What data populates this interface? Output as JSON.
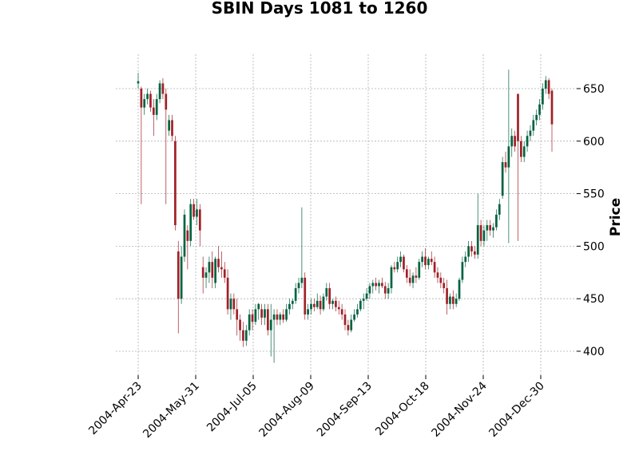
{
  "chart_data": {
    "type": "candlestick",
    "title": "SBIN Days 1081 to 1260",
    "ylabel": "Price",
    "xlabel": "",
    "ylim": [
      378,
      680
    ],
    "y_ticks": [
      400,
      450,
      500,
      550,
      600,
      650
    ],
    "x_tick_labels": [
      "2004-Apr-23",
      "2004-May-31",
      "2004-Jul-05",
      "2004-Aug-09",
      "2004-Sep-13",
      "2004-Oct-18",
      "2004-Nov-24",
      "2004-Dec-30"
    ],
    "x_tick_index": [
      0,
      25,
      50,
      75,
      100,
      125,
      150,
      175
    ],
    "up_color": "#006340",
    "down_color": "#a02128",
    "grid": true,
    "candles": [
      {
        "o": 655,
        "h": 665,
        "l": 650,
        "c": 657
      },
      {
        "o": 650,
        "h": 652,
        "l": 540,
        "c": 632
      },
      {
        "o": 632,
        "h": 645,
        "l": 625,
        "c": 640
      },
      {
        "o": 640,
        "h": 650,
        "l": 635,
        "c": 645
      },
      {
        "o": 645,
        "h": 648,
        "l": 628,
        "c": 632
      },
      {
        "o": 632,
        "h": 640,
        "l": 605,
        "c": 625
      },
      {
        "o": 625,
        "h": 645,
        "l": 620,
        "c": 640
      },
      {
        "o": 640,
        "h": 658,
        "l": 636,
        "c": 655
      },
      {
        "o": 655,
        "h": 660,
        "l": 640,
        "c": 645
      },
      {
        "o": 645,
        "h": 650,
        "l": 540,
        "c": 630
      },
      {
        "o": 610,
        "h": 625,
        "l": 605,
        "c": 620
      },
      {
        "o": 620,
        "h": 625,
        "l": 600,
        "c": 605
      },
      {
        "o": 600,
        "h": 605,
        "l": 515,
        "c": 520
      },
      {
        "o": 495,
        "h": 505,
        "l": 417,
        "c": 450
      },
      {
        "o": 450,
        "h": 500,
        "l": 445,
        "c": 490
      },
      {
        "o": 490,
        "h": 535,
        "l": 485,
        "c": 530
      },
      {
        "o": 515,
        "h": 520,
        "l": 478,
        "c": 505
      },
      {
        "o": 505,
        "h": 545,
        "l": 500,
        "c": 540
      },
      {
        "o": 540,
        "h": 545,
        "l": 525,
        "c": 528
      },
      {
        "o": 528,
        "h": 545,
        "l": 520,
        "c": 535
      },
      {
        "o": 535,
        "h": 540,
        "l": 500,
        "c": 515
      },
      {
        "o": 480,
        "h": 490,
        "l": 455,
        "c": 470
      },
      {
        "o": 470,
        "h": 480,
        "l": 460,
        "c": 475
      },
      {
        "o": 475,
        "h": 490,
        "l": 465,
        "c": 485
      },
      {
        "o": 485,
        "h": 495,
        "l": 460,
        "c": 470
      },
      {
        "o": 465,
        "h": 490,
        "l": 460,
        "c": 488
      },
      {
        "o": 488,
        "h": 500,
        "l": 475,
        "c": 480
      },
      {
        "o": 480,
        "h": 495,
        "l": 470,
        "c": 478
      },
      {
        "o": 478,
        "h": 485,
        "l": 465,
        "c": 470
      },
      {
        "o": 470,
        "h": 478,
        "l": 435,
        "c": 440
      },
      {
        "o": 440,
        "h": 455,
        "l": 430,
        "c": 450
      },
      {
        "o": 450,
        "h": 455,
        "l": 435,
        "c": 440
      },
      {
        "o": 440,
        "h": 450,
        "l": 415,
        "c": 430
      },
      {
        "o": 430,
        "h": 435,
        "l": 410,
        "c": 420
      },
      {
        "o": 420,
        "h": 428,
        "l": 404,
        "c": 410
      },
      {
        "o": 410,
        "h": 425,
        "l": 405,
        "c": 420
      },
      {
        "o": 420,
        "h": 440,
        "l": 415,
        "c": 435
      },
      {
        "o": 435,
        "h": 440,
        "l": 420,
        "c": 428
      },
      {
        "o": 428,
        "h": 445,
        "l": 425,
        "c": 440
      },
      {
        "o": 440,
        "h": 446,
        "l": 430,
        "c": 445
      },
      {
        "o": 440,
        "h": 445,
        "l": 425,
        "c": 432
      },
      {
        "o": 432,
        "h": 445,
        "l": 425,
        "c": 440
      },
      {
        "o": 440,
        "h": 445,
        "l": 415,
        "c": 420
      },
      {
        "o": 420,
        "h": 445,
        "l": 395,
        "c": 430
      },
      {
        "o": 430,
        "h": 440,
        "l": 389,
        "c": 435
      },
      {
        "o": 435,
        "h": 440,
        "l": 425,
        "c": 430
      },
      {
        "o": 430,
        "h": 437,
        "l": 425,
        "c": 435
      },
      {
        "o": 435,
        "h": 440,
        "l": 427,
        "c": 430
      },
      {
        "o": 430,
        "h": 445,
        "l": 428,
        "c": 440
      },
      {
        "o": 440,
        "h": 450,
        "l": 435,
        "c": 445
      },
      {
        "o": 445,
        "h": 450,
        "l": 440,
        "c": 448
      },
      {
        "o": 448,
        "h": 465,
        "l": 445,
        "c": 460
      },
      {
        "o": 460,
        "h": 470,
        "l": 455,
        "c": 465
      },
      {
        "o": 465,
        "h": 537,
        "l": 460,
        "c": 470
      },
      {
        "o": 470,
        "h": 475,
        "l": 430,
        "c": 435
      },
      {
        "o": 435,
        "h": 445,
        "l": 430,
        "c": 440
      },
      {
        "o": 440,
        "h": 450,
        "l": 435,
        "c": 445
      },
      {
        "o": 445,
        "h": 450,
        "l": 438,
        "c": 442
      },
      {
        "o": 442,
        "h": 455,
        "l": 440,
        "c": 448
      },
      {
        "o": 448,
        "h": 453,
        "l": 435,
        "c": 440
      },
      {
        "o": 440,
        "h": 455,
        "l": 438,
        "c": 452
      },
      {
        "o": 452,
        "h": 465,
        "l": 448,
        "c": 460
      },
      {
        "o": 460,
        "h": 465,
        "l": 440,
        "c": 445
      },
      {
        "o": 445,
        "h": 450,
        "l": 440,
        "c": 448
      },
      {
        "o": 448,
        "h": 452,
        "l": 438,
        "c": 442
      },
      {
        "o": 442,
        "h": 448,
        "l": 435,
        "c": 440
      },
      {
        "o": 440,
        "h": 445,
        "l": 430,
        "c": 435
      },
      {
        "o": 435,
        "h": 440,
        "l": 420,
        "c": 425
      },
      {
        "o": 425,
        "h": 430,
        "l": 415,
        "c": 420
      },
      {
        "o": 420,
        "h": 435,
        "l": 418,
        "c": 430
      },
      {
        "o": 430,
        "h": 440,
        "l": 428,
        "c": 435
      },
      {
        "o": 435,
        "h": 445,
        "l": 432,
        "c": 440
      },
      {
        "o": 440,
        "h": 450,
        "l": 438,
        "c": 448
      },
      {
        "o": 448,
        "h": 455,
        "l": 440,
        "c": 450
      },
      {
        "o": 450,
        "h": 460,
        "l": 448,
        "c": 455
      },
      {
        "o": 455,
        "h": 465,
        "l": 450,
        "c": 462
      },
      {
        "o": 462,
        "h": 468,
        "l": 455,
        "c": 465
      },
      {
        "o": 465,
        "h": 470,
        "l": 458,
        "c": 462
      },
      {
        "o": 462,
        "h": 468,
        "l": 455,
        "c": 465
      },
      {
        "o": 465,
        "h": 470,
        "l": 460,
        "c": 462
      },
      {
        "o": 462,
        "h": 466,
        "l": 450,
        "c": 455
      },
      {
        "o": 455,
        "h": 465,
        "l": 450,
        "c": 460
      },
      {
        "o": 460,
        "h": 482,
        "l": 455,
        "c": 480
      },
      {
        "o": 480,
        "h": 485,
        "l": 475,
        "c": 478
      },
      {
        "o": 478,
        "h": 490,
        "l": 475,
        "c": 485
      },
      {
        "o": 485,
        "h": 495,
        "l": 480,
        "c": 490
      },
      {
        "o": 490,
        "h": 492,
        "l": 475,
        "c": 478
      },
      {
        "o": 478,
        "h": 482,
        "l": 465,
        "c": 470
      },
      {
        "o": 470,
        "h": 478,
        "l": 462,
        "c": 465
      },
      {
        "o": 465,
        "h": 475,
        "l": 460,
        "c": 472
      },
      {
        "o": 472,
        "h": 480,
        "l": 465,
        "c": 470
      },
      {
        "o": 470,
        "h": 488,
        "l": 468,
        "c": 485
      },
      {
        "o": 485,
        "h": 495,
        "l": 480,
        "c": 490
      },
      {
        "o": 490,
        "h": 498,
        "l": 478,
        "c": 482
      },
      {
        "o": 482,
        "h": 490,
        "l": 478,
        "c": 488
      },
      {
        "o": 488,
        "h": 495,
        "l": 482,
        "c": 485
      },
      {
        "o": 485,
        "h": 490,
        "l": 470,
        "c": 475
      },
      {
        "o": 475,
        "h": 480,
        "l": 465,
        "c": 470
      },
      {
        "o": 470,
        "h": 475,
        "l": 460,
        "c": 465
      },
      {
        "o": 465,
        "h": 470,
        "l": 455,
        "c": 460
      },
      {
        "o": 460,
        "h": 468,
        "l": 435,
        "c": 445
      },
      {
        "o": 445,
        "h": 455,
        "l": 440,
        "c": 452
      },
      {
        "o": 452,
        "h": 458,
        "l": 440,
        "c": 445
      },
      {
        "o": 445,
        "h": 455,
        "l": 442,
        "c": 450
      },
      {
        "o": 450,
        "h": 470,
        "l": 448,
        "c": 468
      },
      {
        "o": 468,
        "h": 490,
        "l": 465,
        "c": 485
      },
      {
        "o": 485,
        "h": 495,
        "l": 480,
        "c": 490
      },
      {
        "o": 490,
        "h": 505,
        "l": 485,
        "c": 500
      },
      {
        "o": 500,
        "h": 505,
        "l": 490,
        "c": 495
      },
      {
        "o": 495,
        "h": 500,
        "l": 488,
        "c": 492
      },
      {
        "o": 492,
        "h": 550,
        "l": 488,
        "c": 520
      },
      {
        "o": 520,
        "h": 525,
        "l": 500,
        "c": 505
      },
      {
        "o": 505,
        "h": 520,
        "l": 500,
        "c": 515
      },
      {
        "o": 515,
        "h": 525,
        "l": 505,
        "c": 520
      },
      {
        "o": 520,
        "h": 525,
        "l": 510,
        "c": 515
      },
      {
        "o": 515,
        "h": 522,
        "l": 508,
        "c": 518
      },
      {
        "o": 518,
        "h": 535,
        "l": 515,
        "c": 530
      },
      {
        "o": 530,
        "h": 545,
        "l": 525,
        "c": 540
      },
      {
        "o": 548,
        "h": 585,
        "l": 545,
        "c": 580
      },
      {
        "o": 580,
        "h": 590,
        "l": 570,
        "c": 575
      },
      {
        "o": 575,
        "h": 668,
        "l": 503,
        "c": 595
      },
      {
        "o": 595,
        "h": 612,
        "l": 585,
        "c": 605
      },
      {
        "o": 605,
        "h": 610,
        "l": 590,
        "c": 595
      },
      {
        "o": 645,
        "h": 645,
        "l": 505,
        "c": 600
      },
      {
        "o": 600,
        "h": 605,
        "l": 580,
        "c": 585
      },
      {
        "o": 585,
        "h": 600,
        "l": 580,
        "c": 595
      },
      {
        "o": 595,
        "h": 610,
        "l": 590,
        "c": 605
      },
      {
        "o": 605,
        "h": 615,
        "l": 600,
        "c": 610
      },
      {
        "o": 610,
        "h": 625,
        "l": 605,
        "c": 620
      },
      {
        "o": 620,
        "h": 630,
        "l": 615,
        "c": 625
      },
      {
        "o": 625,
        "h": 640,
        "l": 620,
        "c": 635
      },
      {
        "o": 635,
        "h": 655,
        "l": 630,
        "c": 650
      },
      {
        "o": 650,
        "h": 662,
        "l": 645,
        "c": 658
      },
      {
        "o": 658,
        "h": 660,
        "l": 640,
        "c": 645
      },
      {
        "o": 648,
        "h": 650,
        "l": 590,
        "c": 616
      }
    ]
  }
}
